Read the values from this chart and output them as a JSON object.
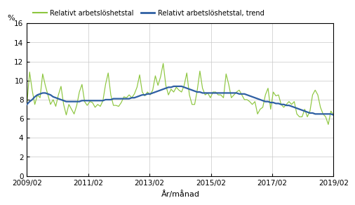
{
  "ylabel": "%",
  "xlabel": "År/månad",
  "ylim": [
    0,
    16
  ],
  "yticks": [
    0,
    2,
    4,
    6,
    8,
    10,
    12,
    14,
    16
  ],
  "xtick_labels": [
    "2009/02",
    "2011/02",
    "2013/02",
    "2015/02",
    "2017/02",
    "2019/02"
  ],
  "xtick_positions": [
    0,
    24,
    48,
    72,
    96,
    120
  ],
  "xlim": [
    0,
    120
  ],
  "legend_labels": [
    "Relativt arbetslöshetstal",
    "Relativt arbetslöshetstal, trend"
  ],
  "line_color_actual": "#8dc63f",
  "line_color_trend": "#2e5fa3",
  "background_color": "#ffffff",
  "grid_color": "#c8c8c8",
  "actual_data": [
    7.5,
    10.9,
    9.0,
    7.5,
    8.5,
    8.2,
    10.7,
    9.5,
    8.5,
    7.5,
    8.0,
    7.3,
    8.5,
    9.4,
    7.5,
    6.4,
    7.5,
    7.0,
    6.5,
    7.4,
    8.8,
    9.6,
    7.8,
    7.4,
    7.8,
    7.7,
    7.2,
    7.5,
    7.3,
    7.9,
    9.6,
    10.8,
    8.5,
    7.4,
    7.4,
    7.3,
    7.7,
    8.3,
    8.2,
    8.5,
    8.2,
    8.6,
    9.3,
    10.6,
    8.8,
    8.4,
    8.8,
    8.5,
    9.0,
    10.5,
    9.5,
    10.4,
    11.8,
    9.5,
    8.5,
    9.1,
    8.8,
    9.3,
    9.0,
    8.8,
    9.5,
    10.8,
    8.5,
    7.5,
    7.5,
    9.0,
    11.0,
    9.2,
    8.5,
    8.7,
    8.2,
    8.8,
    8.8,
    8.5,
    8.5,
    8.2,
    10.7,
    9.6,
    8.2,
    8.5,
    8.8,
    9.0,
    8.5,
    8.0,
    8.0,
    7.8,
    7.5,
    7.8,
    6.5,
    7.0,
    7.2,
    8.5,
    9.2,
    7.0,
    8.8,
    8.4,
    8.5,
    7.5,
    7.2,
    7.5,
    7.8,
    7.5,
    7.8,
    6.5,
    6.2,
    6.2,
    7.0,
    6.2,
    6.8,
    8.5,
    9.0,
    8.5,
    7.2,
    6.5,
    6.2,
    5.4,
    6.8,
    6.4
  ],
  "trend_data": [
    7.5,
    7.8,
    8.0,
    8.3,
    8.5,
    8.6,
    8.7,
    8.7,
    8.6,
    8.5,
    8.3,
    8.2,
    8.1,
    8.0,
    7.9,
    7.8,
    7.8,
    7.8,
    7.8,
    7.8,
    7.8,
    7.9,
    7.9,
    7.9,
    7.9,
    7.9,
    7.9,
    7.9,
    7.9,
    7.9,
    8.0,
    8.0,
    8.0,
    8.1,
    8.1,
    8.1,
    8.1,
    8.1,
    8.1,
    8.1,
    8.2,
    8.2,
    8.3,
    8.4,
    8.5,
    8.5,
    8.6,
    8.6,
    8.7,
    8.8,
    8.9,
    9.0,
    9.1,
    9.2,
    9.3,
    9.3,
    9.4,
    9.4,
    9.4,
    9.4,
    9.3,
    9.2,
    9.1,
    9.0,
    8.9,
    8.8,
    8.8,
    8.7,
    8.7,
    8.7,
    8.7,
    8.7,
    8.7,
    8.7,
    8.7,
    8.7,
    8.7,
    8.7,
    8.7,
    8.7,
    8.7,
    8.6,
    8.6,
    8.6,
    8.5,
    8.4,
    8.3,
    8.2,
    8.1,
    8.0,
    7.9,
    7.8,
    7.8,
    7.7,
    7.7,
    7.6,
    7.6,
    7.5,
    7.5,
    7.4,
    7.4,
    7.3,
    7.2,
    7.1,
    7.0,
    6.9,
    6.8,
    6.7,
    6.6,
    6.6,
    6.5,
    6.5,
    6.5,
    6.5,
    6.5,
    6.5,
    6.5,
    6.4
  ]
}
